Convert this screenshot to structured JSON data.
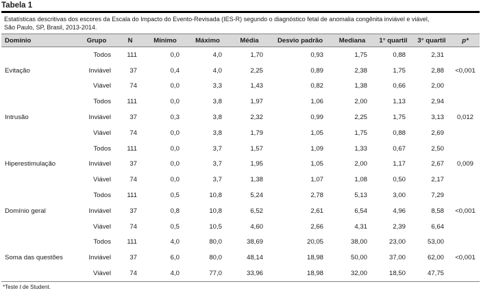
{
  "table": {
    "label": "Tabela 1",
    "caption_line1": "Estatísticas descritivas dos escores da Escala do Impacto do Evento-Revisada (IES-R) segundo o diagnóstico fetal de anomalia congênita inviável e viável,",
    "caption_line2": "São Paulo, SP, Brasil, 2013-2014.",
    "headers": {
      "dominio": "Domínio",
      "grupo": "Grupo",
      "n": "N",
      "minimo": "Mínimo",
      "maximo": "Máximo",
      "media": "Média",
      "desvio": "Desvio padrão",
      "mediana": "Mediana",
      "q1": "1° quartil",
      "q3": "3° quartil",
      "p": "p*"
    },
    "rows": [
      {
        "dominio": "",
        "grupo": "Todos",
        "n": "111",
        "minimo": "0,0",
        "maximo": "4,0",
        "media": "1,70",
        "desvio": "0,93",
        "mediana": "1,75",
        "q1": "0,88",
        "q3": "2,31",
        "p": ""
      },
      {
        "dominio": "Evitação",
        "grupo": "Inviável",
        "n": "37",
        "minimo": "0,4",
        "maximo": "4,0",
        "media": "2,25",
        "desvio": "0,89",
        "mediana": "2,38",
        "q1": "1,75",
        "q3": "2,88",
        "p": "<0,001"
      },
      {
        "dominio": "",
        "grupo": "Viável",
        "n": "74",
        "minimo": "0,0",
        "maximo": "3,3",
        "media": "1,43",
        "desvio": "0,82",
        "mediana": "1,38",
        "q1": "0,66",
        "q3": "2,00",
        "p": ""
      },
      {
        "dominio": "",
        "grupo": "Todos",
        "n": "111",
        "minimo": "0,0",
        "maximo": "3,8",
        "media": "1,97",
        "desvio": "1,06",
        "mediana": "2,00",
        "q1": "1,13",
        "q3": "2,94",
        "p": ""
      },
      {
        "dominio": "Intrusão",
        "grupo": "Inviável",
        "n": "37",
        "minimo": "0,3",
        "maximo": "3,8",
        "media": "2,32",
        "desvio": "0,99",
        "mediana": "2,25",
        "q1": "1,75",
        "q3": "3,13",
        "p": "0,012"
      },
      {
        "dominio": "",
        "grupo": "Viável",
        "n": "74",
        "minimo": "0,0",
        "maximo": "3,8",
        "media": "1,79",
        "desvio": "1,05",
        "mediana": "1,75",
        "q1": "0,88",
        "q3": "2,69",
        "p": ""
      },
      {
        "dominio": "",
        "grupo": "Todos",
        "n": "111",
        "minimo": "0,0",
        "maximo": "3,7",
        "media": "1,57",
        "desvio": "1,09",
        "mediana": "1,33",
        "q1": "0,67",
        "q3": "2,50",
        "p": ""
      },
      {
        "dominio": "Hiperestimulação",
        "grupo": "Inviável",
        "n": "37",
        "minimo": "0,0",
        "maximo": "3,7",
        "media": "1,95",
        "desvio": "1,05",
        "mediana": "2,00",
        "q1": "1,17",
        "q3": "2,67",
        "p": "0,009"
      },
      {
        "dominio": "",
        "grupo": "Viável",
        "n": "74",
        "minimo": "0,0",
        "maximo": "3,7",
        "media": "1,38",
        "desvio": "1,07",
        "mediana": "1,08",
        "q1": "0,50",
        "q3": "2,17",
        "p": ""
      },
      {
        "dominio": "",
        "grupo": "Todos",
        "n": "111",
        "minimo": "0,5",
        "maximo": "10,8",
        "media": "5,24",
        "desvio": "2,78",
        "mediana": "5,13",
        "q1": "3,00",
        "q3": "7,29",
        "p": ""
      },
      {
        "dominio": "Domínio geral",
        "grupo": "Inviável",
        "n": "37",
        "minimo": "0,8",
        "maximo": "10,8",
        "media": "6,52",
        "desvio": "2,61",
        "mediana": "6,54",
        "q1": "4,96",
        "q3": "8,58",
        "p": "<0,001"
      },
      {
        "dominio": "",
        "grupo": "Viável",
        "n": "74",
        "minimo": "0,5",
        "maximo": "10,5",
        "media": "4,60",
        "desvio": "2,66",
        "mediana": "4,31",
        "q1": "2,39",
        "q3": "6,64",
        "p": ""
      },
      {
        "dominio": "",
        "grupo": "Todos",
        "n": "111",
        "minimo": "4,0",
        "maximo": "80,0",
        "media": "38,69",
        "desvio": "20,05",
        "mediana": "38,00",
        "q1": "23,00",
        "q3": "53,00",
        "p": ""
      },
      {
        "dominio": "Soma das questões",
        "grupo": "Inviável",
        "n": "37",
        "minimo": "6,0",
        "maximo": "80,0",
        "media": "48,14",
        "desvio": "18,98",
        "mediana": "50,00",
        "q1": "37,00",
        "q3": "62,00",
        "p": "<0,001"
      },
      {
        "dominio": "",
        "grupo": "Viável",
        "n": "74",
        "minimo": "4,0",
        "maximo": "77,0",
        "media": "33,96",
        "desvio": "18,98",
        "mediana": "32,00",
        "q1": "18,50",
        "q3": "47,75",
        "p": ""
      }
    ],
    "footnote_prefix": "*Teste ",
    "footnote_italic": "t",
    "footnote_suffix": " de Student."
  }
}
